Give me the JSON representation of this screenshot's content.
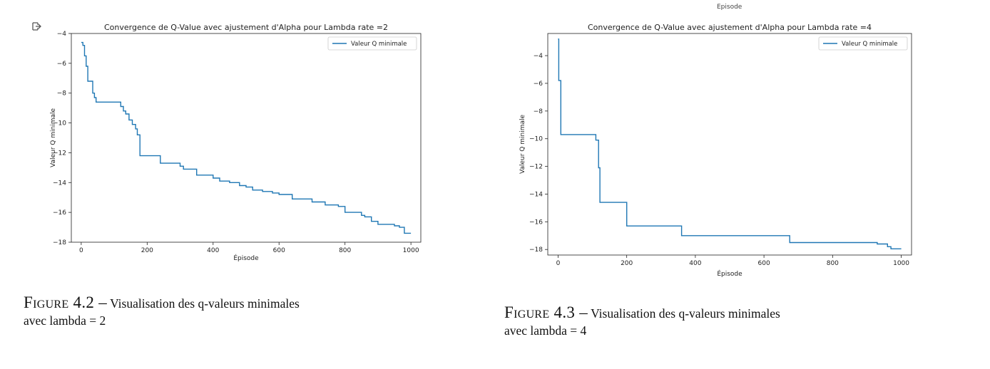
{
  "chart_data": [
    {
      "type": "line",
      "title": "Convergence de Q-Value avec ajustement d'Alpha pour Lambda rate =2",
      "xlabel": "Épisode",
      "ylabel": "Valeur Q minimale",
      "xlim": [
        -30,
        1030
      ],
      "ylim": [
        -18,
        -4
      ],
      "xticks": [
        0,
        200,
        400,
        600,
        800,
        1000
      ],
      "yticks": [
        -18,
        -16,
        -14,
        -12,
        -10,
        -8,
        -6,
        -4
      ],
      "legend_position": "top-right",
      "grid": false,
      "series": [
        {
          "name": "Valeur Q minimale",
          "color": "#1f77b4",
          "step": true,
          "x": [
            0,
            5,
            10,
            15,
            20,
            35,
            40,
            45,
            120,
            128,
            135,
            145,
            155,
            165,
            170,
            178,
            185,
            240,
            300,
            310,
            350,
            400,
            420,
            450,
            480,
            500,
            520,
            550,
            580,
            600,
            640,
            700,
            740,
            780,
            800,
            850,
            860,
            880,
            900,
            950,
            965,
            980,
            1000
          ],
          "y": [
            -4.6,
            -4.8,
            -5.5,
            -6.2,
            -7.2,
            -8.0,
            -8.3,
            -8.6,
            -8.9,
            -9.2,
            -9.4,
            -9.8,
            -10.1,
            -10.4,
            -10.8,
            -12.2,
            -12.2,
            -12.7,
            -12.9,
            -13.1,
            -13.5,
            -13.7,
            -13.9,
            -14.0,
            -14.2,
            -14.3,
            -14.5,
            -14.6,
            -14.7,
            -14.8,
            -15.1,
            -15.3,
            -15.5,
            -15.6,
            -16.0,
            -16.2,
            -16.3,
            -16.6,
            -16.8,
            -16.9,
            -17.0,
            -17.4,
            -17.4
          ]
        }
      ]
    },
    {
      "type": "line",
      "title": "Convergence de Q-Value avec ajustement d'Alpha pour Lambda rate =4",
      "xlabel": "Épisode",
      "ylabel": "Valeur Q minimale",
      "xlim": [
        -30,
        1030
      ],
      "ylim": [
        -18.4,
        -2.4
      ],
      "xticks": [
        0,
        200,
        400,
        600,
        800,
        1000
      ],
      "yticks": [
        -18,
        -16,
        -14,
        -12,
        -10,
        -8,
        -6,
        -4
      ],
      "legend_position": "top-right",
      "grid": false,
      "series": [
        {
          "name": "Valeur Q minimale",
          "color": "#1f77b4",
          "step": true,
          "x": [
            0,
            2,
            8,
            100,
            110,
            118,
            122,
            200,
            360,
            675,
            930,
            960,
            970,
            1000
          ],
          "y": [
            -2.8,
            -5.8,
            -9.7,
            -9.7,
            -10.1,
            -12.1,
            -14.6,
            -16.3,
            -17.0,
            -17.5,
            -17.6,
            -17.8,
            -17.95,
            -17.95
          ]
        }
      ]
    }
  ],
  "figure_captions": [
    {
      "label": "Figure 4.2 –",
      "text": "Visualisation des q-valeurs minimales",
      "line2": "avec lambda = 2"
    },
    {
      "label": "Figure 4.3 –",
      "text": "Visualisation des q-valeurs minimales",
      "line2": "avec lambda = 4"
    }
  ],
  "top_label": "Episode",
  "icons": [
    "export-icon"
  ]
}
